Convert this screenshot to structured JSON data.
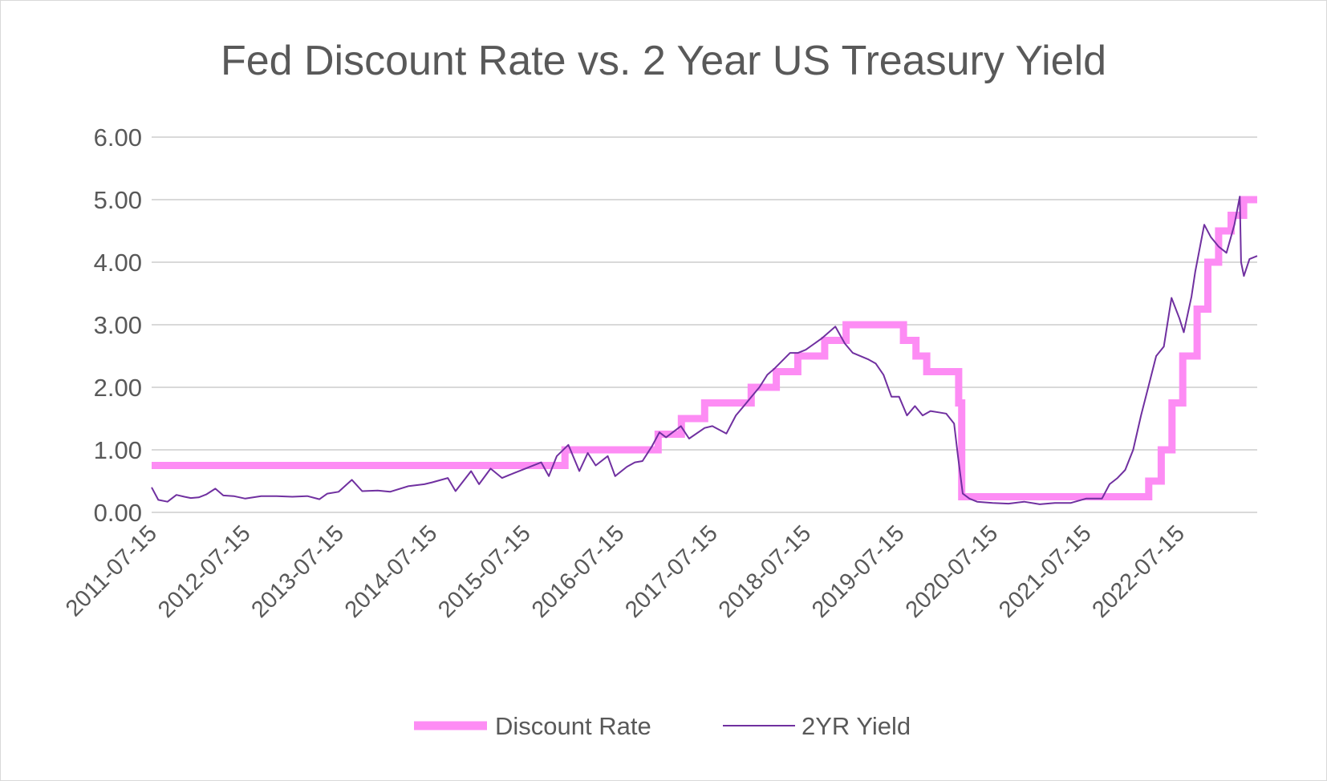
{
  "colors": {
    "discount_rate": "#fd8cf4",
    "yield_2yr": "#7030a0",
    "grid": "#d9d9d9",
    "text": "#595959"
  },
  "chart_data": {
    "type": "line",
    "title": "Fed Discount Rate vs. 2 Year US Treasury Yield",
    "xlabel": "",
    "ylabel": "",
    "x_axis": {
      "type": "date",
      "range": [
        "2011-07-15",
        "2023-05-15"
      ],
      "tick_labels": [
        "2011-07-15",
        "2012-07-15",
        "2013-07-15",
        "2014-07-15",
        "2015-07-15",
        "2016-07-15",
        "2017-07-15",
        "2018-07-15",
        "2019-07-15",
        "2020-07-15",
        "2021-07-15",
        "2022-07-15"
      ]
    },
    "y_axis": {
      "range": [
        0,
        6
      ],
      "tick_labels": [
        "0.00",
        "1.00",
        "2.00",
        "3.00",
        "4.00",
        "5.00",
        "6.00"
      ]
    },
    "grid": true,
    "legend_position": "bottom",
    "series": [
      {
        "name": "Discount Rate",
        "style": "step",
        "points": [
          [
            "2011-07-15",
            0.75
          ],
          [
            "2015-12-17",
            1.0
          ],
          [
            "2016-12-15",
            1.25
          ],
          [
            "2017-03-16",
            1.5
          ],
          [
            "2017-06-15",
            1.75
          ],
          [
            "2017-12-14",
            2.0
          ],
          [
            "2018-03-22",
            2.25
          ],
          [
            "2018-06-14",
            2.5
          ],
          [
            "2018-09-27",
            2.75
          ],
          [
            "2018-12-20",
            3.0
          ],
          [
            "2019-08-01",
            2.75
          ],
          [
            "2019-09-19",
            2.5
          ],
          [
            "2019-10-31",
            2.25
          ],
          [
            "2020-03-04",
            1.75
          ],
          [
            "2020-03-16",
            0.25
          ],
          [
            "2022-03-17",
            0.5
          ],
          [
            "2022-05-05",
            1.0
          ],
          [
            "2022-06-16",
            1.75
          ],
          [
            "2022-07-28",
            2.5
          ],
          [
            "2022-09-22",
            3.25
          ],
          [
            "2022-11-03",
            4.0
          ],
          [
            "2022-12-15",
            4.5
          ],
          [
            "2023-02-02",
            4.75
          ],
          [
            "2023-03-23",
            5.0
          ],
          [
            "2023-05-15",
            5.0
          ]
        ]
      },
      {
        "name": "2YR Yield",
        "style": "line",
        "points": [
          [
            "2011-07-15",
            0.4
          ],
          [
            "2011-08-10",
            0.2
          ],
          [
            "2011-09-15",
            0.17
          ],
          [
            "2011-10-20",
            0.28
          ],
          [
            "2011-11-20",
            0.25
          ],
          [
            "2011-12-15",
            0.23
          ],
          [
            "2012-01-15",
            0.24
          ],
          [
            "2012-02-15",
            0.29
          ],
          [
            "2012-03-20",
            0.38
          ],
          [
            "2012-04-20",
            0.27
          ],
          [
            "2012-05-31",
            0.26
          ],
          [
            "2012-07-15",
            0.22
          ],
          [
            "2012-09-15",
            0.26
          ],
          [
            "2012-11-15",
            0.26
          ],
          [
            "2013-01-15",
            0.25
          ],
          [
            "2013-03-15",
            0.26
          ],
          [
            "2013-05-01",
            0.21
          ],
          [
            "2013-06-01",
            0.3
          ],
          [
            "2013-07-15",
            0.33
          ],
          [
            "2013-09-05",
            0.52
          ],
          [
            "2013-10-15",
            0.34
          ],
          [
            "2013-12-15",
            0.35
          ],
          [
            "2014-02-01",
            0.33
          ],
          [
            "2014-04-15",
            0.42
          ],
          [
            "2014-06-15",
            0.45
          ],
          [
            "2014-07-15",
            0.48
          ],
          [
            "2014-09-15",
            0.55
          ],
          [
            "2014-10-15",
            0.34
          ],
          [
            "2014-12-15",
            0.66
          ],
          [
            "2015-01-15",
            0.45
          ],
          [
            "2015-03-01",
            0.7
          ],
          [
            "2015-04-15",
            0.55
          ],
          [
            "2015-06-01",
            0.63
          ],
          [
            "2015-07-15",
            0.7
          ],
          [
            "2015-09-15",
            0.8
          ],
          [
            "2015-10-15",
            0.58
          ],
          [
            "2015-11-15",
            0.9
          ],
          [
            "2015-12-30",
            1.08
          ],
          [
            "2016-02-11",
            0.66
          ],
          [
            "2016-03-15",
            0.95
          ],
          [
            "2016-04-15",
            0.75
          ],
          [
            "2016-06-01",
            0.9
          ],
          [
            "2016-06-30",
            0.58
          ],
          [
            "2016-08-15",
            0.73
          ],
          [
            "2016-09-15",
            0.8
          ],
          [
            "2016-10-15",
            0.82
          ],
          [
            "2016-11-20",
            1.05
          ],
          [
            "2016-12-20",
            1.28
          ],
          [
            "2017-01-15",
            1.2
          ],
          [
            "2017-03-14",
            1.38
          ],
          [
            "2017-04-15",
            1.18
          ],
          [
            "2017-06-15",
            1.35
          ],
          [
            "2017-07-15",
            1.38
          ],
          [
            "2017-09-08",
            1.26
          ],
          [
            "2017-10-15",
            1.55
          ],
          [
            "2017-11-15",
            1.7
          ],
          [
            "2017-12-15",
            1.85
          ],
          [
            "2018-01-15",
            2.0
          ],
          [
            "2018-02-15",
            2.2
          ],
          [
            "2018-03-15",
            2.3
          ],
          [
            "2018-05-15",
            2.55
          ],
          [
            "2018-06-15",
            2.55
          ],
          [
            "2018-07-15",
            2.6
          ],
          [
            "2018-09-15",
            2.78
          ],
          [
            "2018-11-08",
            2.97
          ],
          [
            "2018-12-15",
            2.7
          ],
          [
            "2019-01-15",
            2.55
          ],
          [
            "2019-03-15",
            2.45
          ],
          [
            "2019-04-15",
            2.38
          ],
          [
            "2019-05-15",
            2.2
          ],
          [
            "2019-06-15",
            1.85
          ],
          [
            "2019-07-15",
            1.85
          ],
          [
            "2019-08-15",
            1.55
          ],
          [
            "2019-09-15",
            1.7
          ],
          [
            "2019-10-15",
            1.55
          ],
          [
            "2019-11-15",
            1.62
          ],
          [
            "2019-12-15",
            1.6
          ],
          [
            "2020-01-15",
            1.58
          ],
          [
            "2020-02-15",
            1.42
          ],
          [
            "2020-03-01",
            0.9
          ],
          [
            "2020-03-20",
            0.3
          ],
          [
            "2020-04-15",
            0.22
          ],
          [
            "2020-05-15",
            0.17
          ],
          [
            "2020-07-15",
            0.15
          ],
          [
            "2020-09-15",
            0.14
          ],
          [
            "2020-11-15",
            0.17
          ],
          [
            "2021-01-15",
            0.13
          ],
          [
            "2021-03-15",
            0.15
          ],
          [
            "2021-05-15",
            0.15
          ],
          [
            "2021-07-15",
            0.22
          ],
          [
            "2021-09-15",
            0.22
          ],
          [
            "2021-10-15",
            0.45
          ],
          [
            "2021-11-15",
            0.55
          ],
          [
            "2021-12-15",
            0.68
          ],
          [
            "2022-01-15",
            1.0
          ],
          [
            "2022-02-15",
            1.55
          ],
          [
            "2022-03-15",
            2.0
          ],
          [
            "2022-04-15",
            2.5
          ],
          [
            "2022-05-15",
            2.65
          ],
          [
            "2022-06-14",
            3.43
          ],
          [
            "2022-07-15",
            3.1
          ],
          [
            "2022-08-01",
            2.88
          ],
          [
            "2022-08-31",
            3.45
          ],
          [
            "2022-09-15",
            3.85
          ],
          [
            "2022-10-20",
            4.6
          ],
          [
            "2022-11-15",
            4.4
          ],
          [
            "2022-12-15",
            4.25
          ],
          [
            "2023-01-15",
            4.15
          ],
          [
            "2023-02-15",
            4.6
          ],
          [
            "2023-03-08",
            5.05
          ],
          [
            "2023-03-13",
            4.0
          ],
          [
            "2023-03-24",
            3.78
          ],
          [
            "2023-04-15",
            4.05
          ],
          [
            "2023-05-15",
            4.1
          ]
        ]
      }
    ]
  },
  "legend": {
    "discount_label": "Discount Rate",
    "yield_label": "2YR Yield"
  }
}
